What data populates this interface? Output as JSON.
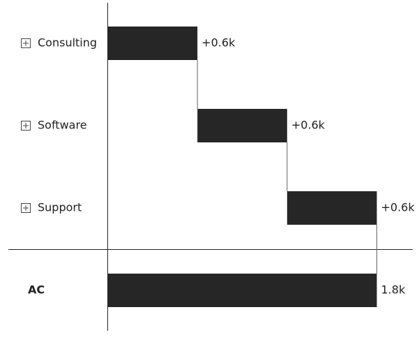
{
  "chart_data": {
    "type": "waterfall",
    "categories": [
      "Consulting",
      "Software",
      "Support"
    ],
    "values": [
      0.6,
      0.6,
      0.6
    ],
    "value_labels": [
      "+0.6k",
      "+0.6k",
      "+0.6k"
    ],
    "total": {
      "label": "AC",
      "value": 1.8,
      "value_label": "1.8k"
    },
    "color": "#262626"
  }
}
